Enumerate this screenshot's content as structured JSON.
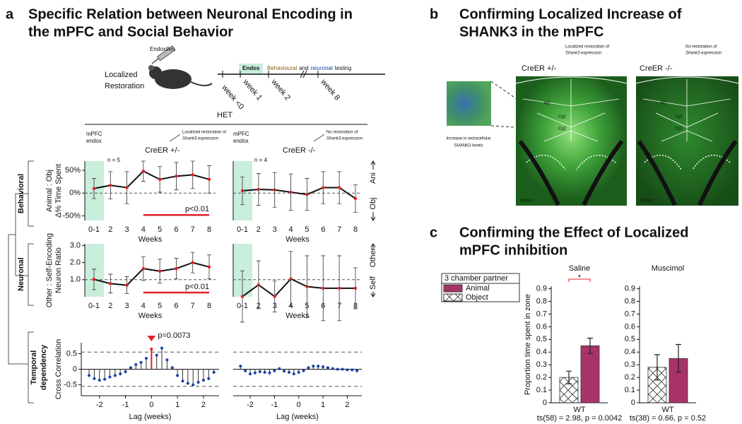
{
  "figure": {
    "a": {
      "letter": "a",
      "title": [
        "Specific Relation between Neuronal Encoding in",
        "the mPFC and Social Behavior"
      ],
      "injection": "Endoxifen",
      "restoration": [
        "Localized",
        "Restoration"
      ],
      "endox": "Endox",
      "testing": [
        "Behavioural",
        "and",
        "neuronal",
        "testing"
      ],
      "weeks": [
        "week <0",
        "week 1",
        "week 2",
        "week 8"
      ],
      "group": "HET",
      "rows": {
        "behavioral": "Behavioral",
        "neuronal": "Neuronal",
        "temporal": [
          "Temporal",
          "dependency"
        ]
      },
      "conditions": [
        {
          "endox": [
            "mPFC",
            "endox"
          ],
          "n": "n = 5",
          "name": "CreER +/-",
          "note": [
            "Localized restoration of",
            "Shank3 expression"
          ]
        },
        {
          "endox": [
            "mPFC",
            "endox"
          ],
          "n": "n = 4",
          "name": "CreER -/-",
          "note": [
            "No restoration of",
            "Shank3 expression"
          ]
        }
      ]
    },
    "b": {
      "letter": "b",
      "title": [
        "Confirming Localized Increase of",
        "SHANK3 in the mPFC"
      ],
      "inset": [
        "Increase in extracellular",
        "SHANK3 levels"
      ],
      "images": [
        {
          "name": "CreER +/-",
          "note": [
            "Localized restoration of",
            "Shank3 expression"
          ],
          "regions": [
            "M2",
            "Cg1",
            "Cg2"
          ],
          "scale": "500um"
        },
        {
          "name": "CreER -/-",
          "note": [
            "No restoration of",
            "Shank3 expression"
          ],
          "regions": [
            "M2",
            "Cg1",
            "Cg2"
          ],
          "scale": "500um"
        }
      ]
    },
    "c": {
      "letter": "c",
      "title": [
        "Confirming the Effect of Localized",
        "mPFC inhibition"
      ]
    }
  },
  "chart_data": [
    {
      "type": "line",
      "categories": [
        "0-1",
        "2",
        "3",
        "4",
        "5",
        "6",
        "7",
        "8"
      ],
      "values": [
        10,
        17,
        12,
        48,
        30,
        37,
        40,
        30
      ],
      "errors": [
        22,
        30,
        35,
        22,
        28,
        30,
        30,
        30
      ],
      "color": "#111111",
      "marker_color": "#e0202a",
      "xlabel": "Weeks",
      "ylabel": [
        "Animal : Obj",
        "Δ% Time Spent"
      ],
      "ylim": [
        -60,
        70
      ],
      "yticks": [
        {
          "value": -50,
          "label": "-50%"
        },
        {
          "value": 0,
          "label": "0%"
        },
        {
          "value": 50,
          "label": "50%"
        }
      ],
      "reference_line": 0,
      "shade": "0-1",
      "shade_color": "#c9eedb",
      "significance": {
        "label": "p<0.01",
        "from": "4",
        "to": "8",
        "y": -48,
        "color": "#e0202a"
      }
    },
    {
      "type": "line",
      "categories": [
        "0-1",
        "2",
        "3",
        "4",
        "5",
        "6",
        "7",
        "8"
      ],
      "values": [
        5,
        8,
        7,
        2,
        -3,
        12,
        12,
        -12
      ],
      "errors": [
        30,
        35,
        38,
        40,
        35,
        35,
        35,
        30
      ],
      "color": "#111111",
      "marker_color": "#e0202a",
      "xlabel": "Weeks",
      "ylim": [
        -60,
        70
      ],
      "reference_line": 0,
      "shade": "0-1",
      "shade_color": "#c9eedb",
      "side_labels": [
        "Ani",
        "Obj"
      ],
      "side_color": "#a8336b"
    },
    {
      "type": "line",
      "categories": [
        "0-1",
        "2",
        "3",
        "4",
        "5",
        "6",
        "7",
        "8"
      ],
      "values": [
        1.02,
        0.77,
        0.68,
        1.65,
        1.5,
        1.65,
        2.0,
        1.75
      ],
      "errors": [
        0.6,
        0.55,
        0.5,
        0.7,
        0.7,
        0.6,
        0.6,
        0.7
      ],
      "color": "#111111",
      "marker_color": "#e0202a",
      "xlabel": "Weeks",
      "ylabel": [
        "Other : Self-Encoding",
        "Neuron Ratio"
      ],
      "ylim": [
        0,
        3.1
      ],
      "yticks": [
        {
          "value": 1,
          "label": "1.0"
        },
        {
          "value": 2,
          "label": "2.0"
        },
        {
          "value": 3,
          "label": "3.0"
        }
      ],
      "reference_line": 1,
      "shade": "0-1",
      "shade_color": "#c9eedb",
      "significance": {
        "label": "p<0.01",
        "from": "4",
        "to": "8",
        "y": 0.25,
        "color": "#e0202a"
      }
    },
    {
      "type": "line",
      "categories": [
        "0-1",
        "2",
        "3",
        "4",
        "5",
        "6",
        "7",
        "8"
      ],
      "values": [
        0.02,
        0.7,
        0.02,
        1.05,
        0.6,
        0.5,
        0.5,
        0.5
      ],
      "errors": [
        1.5,
        1.4,
        0.9,
        1.6,
        1.8,
        1.9,
        1.9,
        1.2
      ],
      "color": "#111111",
      "marker_color": "#e0202a",
      "xlabel": "Weeks",
      "ylim": [
        0,
        3.1
      ],
      "reference_line": 1,
      "shade": "0-1",
      "shade_color": "#c9eedb",
      "side_labels": [
        "Other",
        "Self"
      ],
      "side_color": "#a8336b"
    },
    {
      "type": "stem",
      "x": [
        -2.4,
        -2.2,
        -2.0,
        -1.8,
        -1.6,
        -1.4,
        -1.2,
        -1.0,
        -0.8,
        -0.6,
        -0.4,
        -0.2,
        0,
        0.2,
        0.4,
        0.6,
        0.8,
        1.0,
        1.2,
        1.4,
        1.6,
        1.8,
        2.0,
        2.2,
        2.4
      ],
      "values": [
        -0.2,
        -0.3,
        -0.35,
        -0.32,
        -0.25,
        -0.2,
        -0.15,
        -0.08,
        0.05,
        0.15,
        0.22,
        0.35,
        0.65,
        0.45,
        0.68,
        0.3,
        0.05,
        -0.2,
        -0.38,
        -0.45,
        -0.5,
        -0.42,
        -0.35,
        -0.3,
        -0.1
      ],
      "color": "#1a3fa6",
      "highlight": 0,
      "highlight_color": "#e0202a",
      "annotation": "p=0.0073",
      "thresholds": [
        -0.55,
        0.55
      ],
      "xlim": [
        -2.7,
        2.6
      ],
      "ylim": [
        -0.85,
        0.85
      ],
      "xticks": [
        -2,
        -1,
        0,
        1,
        2
      ],
      "yticks": [
        -0.5,
        0,
        0.5
      ],
      "xlabel": "Lag (weeks)",
      "ylabel": "Cross Correlation"
    },
    {
      "type": "stem",
      "x": [
        -2.4,
        -2.2,
        -2.0,
        -1.8,
        -1.6,
        -1.4,
        -1.2,
        -1.0,
        -0.8,
        -0.6,
        -0.4,
        -0.2,
        0,
        0.2,
        0.4,
        0.6,
        0.8,
        1.0,
        1.2,
        1.4,
        1.6,
        1.8,
        2.0,
        2.2,
        2.4
      ],
      "values": [
        0.1,
        -0.05,
        -0.15,
        -0.12,
        -0.08,
        -0.1,
        -0.12,
        -0.05,
        0.02,
        -0.06,
        -0.1,
        -0.15,
        -0.1,
        -0.05,
        0.05,
        0.1,
        0.1,
        0.08,
        0.05,
        0.02,
        0.0,
        0.0,
        -0.02,
        -0.02,
        -0.05
      ],
      "color": "#1a3fa6",
      "thresholds": [
        -0.55,
        0.55
      ],
      "xlim": [
        -2.7,
        2.6
      ],
      "ylim": [
        -0.85,
        0.85
      ],
      "xticks": [
        -2,
        -1,
        0,
        1,
        2
      ],
      "xlabel": "Lag (weeks)"
    },
    {
      "type": "bar",
      "title": "Saline",
      "categories": [
        "WT"
      ],
      "stats": "ts(58) = 2.98, p = 0.0042",
      "significance": "*",
      "significance_color": "#e0202a",
      "legend_title": "3 chamber partner",
      "ylabel": "Proportion time spent in zone",
      "ylim": [
        0,
        0.92
      ],
      "yticks": [
        0,
        0.1,
        0.2,
        0.3,
        0.4,
        0.5,
        0.6,
        0.7,
        0.8,
        0.9
      ],
      "series": [
        {
          "name": "Animal",
          "color": "#a8336b",
          "values": [
            0.45
          ],
          "errors": [
            0.06
          ]
        },
        {
          "name": "Object",
          "color": "#ffffff",
          "hatch": true,
          "values": [
            0.2
          ],
          "errors": [
            0.05
          ]
        }
      ]
    },
    {
      "type": "bar",
      "title": "Muscimol",
      "categories": [
        "WT"
      ],
      "stats": "ts(38) = 0.66, p = 0.52",
      "ylim": [
        0,
        0.92
      ],
      "yticks": [
        0,
        0.1,
        0.2,
        0.3,
        0.4,
        0.5,
        0.6,
        0.7,
        0.8,
        0.9
      ],
      "series": [
        {
          "name": "Animal",
          "color": "#a8336b",
          "values": [
            0.35
          ],
          "errors": [
            0.11
          ]
        },
        {
          "name": "Object",
          "color": "#ffffff",
          "hatch": true,
          "values": [
            0.28
          ],
          "errors": [
            0.1
          ]
        }
      ]
    }
  ]
}
